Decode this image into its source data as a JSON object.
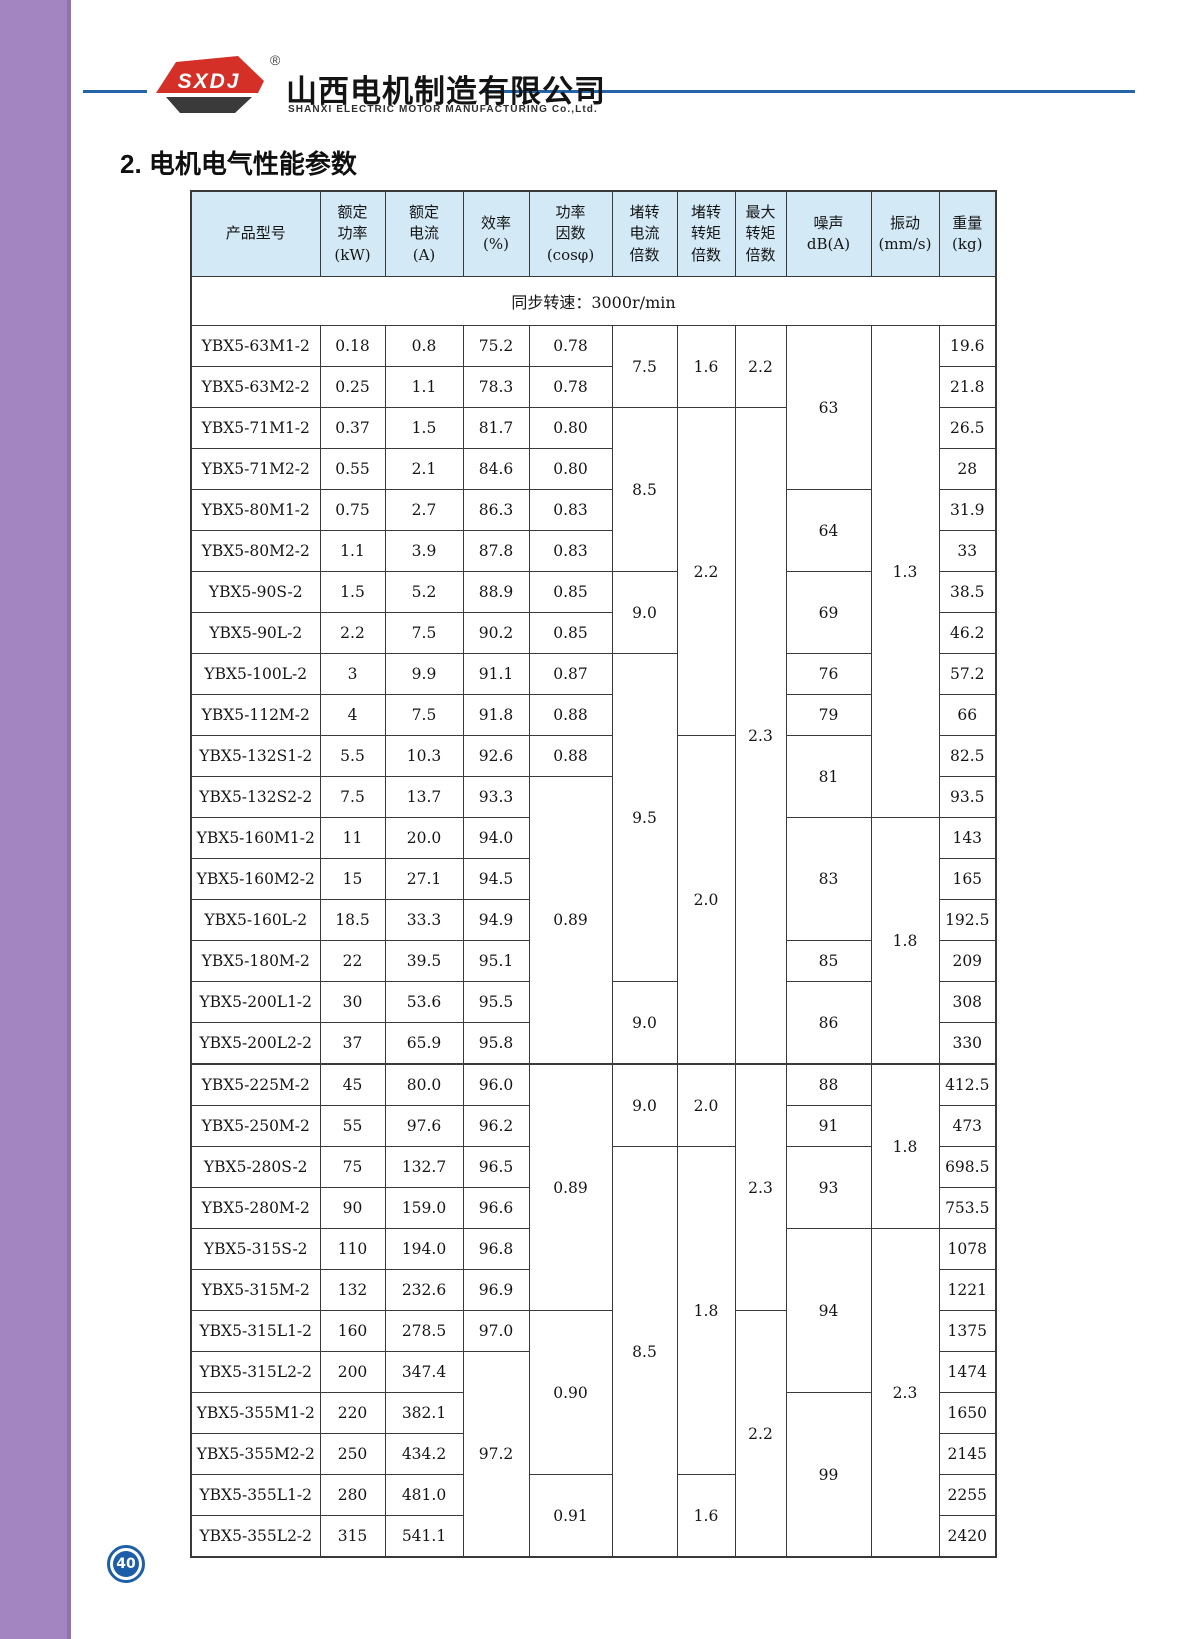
{
  "page": {
    "number": "40",
    "sidebar_color": "#a285c1",
    "sidebar_edge_color": "#9174af",
    "accent_blue": "#2465a8",
    "badge_blue": "#1c5fa8"
  },
  "header": {
    "brand_abbr": "SXDJ",
    "reg_mark": "®",
    "company_cn": "山西电机制造有限公司",
    "company_en": "SHANXI ELECTRIC MOTOR MANUFACTURING Co.,Ltd.",
    "logo_red": "#d43027",
    "logo_dark": "#3a3a3a"
  },
  "section": {
    "title": "2. 电机电气性能参数"
  },
  "table": {
    "header_bg": "#d3eaf6",
    "subheader": "同步转速：3000r/min",
    "block_separator_after_row": 18,
    "columns": [
      {
        "key": "product-model",
        "lines": [
          "产品型号"
        ]
      },
      {
        "key": "rated-power",
        "lines": [
          "额定",
          "功率",
          "(kW)"
        ]
      },
      {
        "key": "rated-current",
        "lines": [
          "额定",
          "电流",
          "(A)"
        ]
      },
      {
        "key": "efficiency",
        "lines": [
          "效率",
          "(%)"
        ]
      },
      {
        "key": "power-factor",
        "lines": [
          "功率",
          "因数",
          "(cosφ)"
        ]
      },
      {
        "key": "locked-rotor-current-ratio",
        "lines": [
          "堵转",
          "电流",
          "倍数"
        ]
      },
      {
        "key": "locked-rotor-torque-ratio",
        "lines": [
          "堵转",
          "转矩",
          "倍数"
        ]
      },
      {
        "key": "max-torque-ratio",
        "lines": [
          "最大",
          "转矩",
          "倍数"
        ]
      },
      {
        "key": "noise",
        "lines": [
          "噪声",
          "dB(A)"
        ]
      },
      {
        "key": "vibration",
        "lines": [
          "振动",
          "(mm/s)"
        ]
      },
      {
        "key": "weight",
        "lines": [
          "重量",
          "(kg)"
        ]
      }
    ],
    "rows": [
      {
        "model": "YBX5-63M1-2",
        "power": "0.18",
        "current": "0.8",
        "weight": "19.6"
      },
      {
        "model": "YBX5-63M2-2",
        "power": "0.25",
        "current": "1.1",
        "weight": "21.8"
      },
      {
        "model": "YBX5-71M1-2",
        "power": "0.37",
        "current": "1.5",
        "weight": "26.5"
      },
      {
        "model": "YBX5-71M2-2",
        "power": "0.55",
        "current": "2.1",
        "weight": "28"
      },
      {
        "model": "YBX5-80M1-2",
        "power": "0.75",
        "current": "2.7",
        "weight": "31.9"
      },
      {
        "model": "YBX5-80M2-2",
        "power": "1.1",
        "current": "3.9",
        "weight": "33"
      },
      {
        "model": "YBX5-90S-2",
        "power": "1.5",
        "current": "5.2",
        "weight": "38.5"
      },
      {
        "model": "YBX5-90L-2",
        "power": "2.2",
        "current": "7.5",
        "weight": "46.2"
      },
      {
        "model": "YBX5-100L-2",
        "power": "3",
        "current": "9.9",
        "weight": "57.2"
      },
      {
        "model": "YBX5-112M-2",
        "power": "4",
        "current": "7.5",
        "weight": "66"
      },
      {
        "model": "YBX5-132S1-2",
        "power": "5.5",
        "current": "10.3",
        "weight": "82.5"
      },
      {
        "model": "YBX5-132S2-2",
        "power": "7.5",
        "current": "13.7",
        "weight": "93.5"
      },
      {
        "model": "YBX5-160M1-2",
        "power": "11",
        "current": "20.0",
        "weight": "143"
      },
      {
        "model": "YBX5-160M2-2",
        "power": "15",
        "current": "27.1",
        "weight": "165"
      },
      {
        "model": "YBX5-160L-2",
        "power": "18.5",
        "current": "33.3",
        "weight": "192.5"
      },
      {
        "model": "YBX5-180M-2",
        "power": "22",
        "current": "39.5",
        "weight": "209"
      },
      {
        "model": "YBX5-200L1-2",
        "power": "30",
        "current": "53.6",
        "weight": "308"
      },
      {
        "model": "YBX5-200L2-2",
        "power": "37",
        "current": "65.9",
        "weight": "330"
      },
      {
        "model": "YBX5-225M-2",
        "power": "45",
        "current": "80.0",
        "weight": "412.5"
      },
      {
        "model": "YBX5-250M-2",
        "power": "55",
        "current": "97.6",
        "weight": "473"
      },
      {
        "model": "YBX5-280S-2",
        "power": "75",
        "current": "132.7",
        "weight": "698.5"
      },
      {
        "model": "YBX5-280M-2",
        "power": "90",
        "current": "159.0",
        "weight": "753.5"
      },
      {
        "model": "YBX5-315S-2",
        "power": "110",
        "current": "194.0",
        "weight": "1078"
      },
      {
        "model": "YBX5-315M-2",
        "power": "132",
        "current": "232.6",
        "weight": "1221"
      },
      {
        "model": "YBX5-315L1-2",
        "power": "160",
        "current": "278.5",
        "weight": "1375"
      },
      {
        "model": "YBX5-315L2-2",
        "power": "200",
        "current": "347.4",
        "weight": "1474"
      },
      {
        "model": "YBX5-355M1-2",
        "power": "220",
        "current": "382.1",
        "weight": "1650"
      },
      {
        "model": "YBX5-355M2-2",
        "power": "250",
        "current": "434.2",
        "weight": "2145"
      },
      {
        "model": "YBX5-355L1-2",
        "power": "280",
        "current": "481.0",
        "weight": "2255"
      },
      {
        "model": "YBX5-355L2-2",
        "power": "315",
        "current": "541.1",
        "weight": "2420"
      }
    ],
    "merged": {
      "efficiency": [
        {
          "start": 1,
          "span": 1,
          "value": "75.2"
        },
        {
          "start": 2,
          "span": 1,
          "value": "78.3"
        },
        {
          "start": 3,
          "span": 1,
          "value": "81.7"
        },
        {
          "start": 4,
          "span": 1,
          "value": "84.6"
        },
        {
          "start": 5,
          "span": 1,
          "value": "86.3"
        },
        {
          "start": 6,
          "span": 1,
          "value": "87.8"
        },
        {
          "start": 7,
          "span": 1,
          "value": "88.9"
        },
        {
          "start": 8,
          "span": 1,
          "value": "90.2"
        },
        {
          "start": 9,
          "span": 1,
          "value": "91.1"
        },
        {
          "start": 10,
          "span": 1,
          "value": "91.8"
        },
        {
          "start": 11,
          "span": 1,
          "value": "92.6"
        },
        {
          "start": 12,
          "span": 1,
          "value": "93.3"
        },
        {
          "start": 13,
          "span": 1,
          "value": "94.0"
        },
        {
          "start": 14,
          "span": 1,
          "value": "94.5"
        },
        {
          "start": 15,
          "span": 1,
          "value": "94.9"
        },
        {
          "start": 16,
          "span": 1,
          "value": "95.1"
        },
        {
          "start": 17,
          "span": 1,
          "value": "95.5"
        },
        {
          "start": 18,
          "span": 1,
          "value": "95.8"
        },
        {
          "start": 19,
          "span": 1,
          "value": "96.0"
        },
        {
          "start": 20,
          "span": 1,
          "value": "96.2"
        },
        {
          "start": 21,
          "span": 1,
          "value": "96.5"
        },
        {
          "start": 22,
          "span": 1,
          "value": "96.6"
        },
        {
          "start": 23,
          "span": 1,
          "value": "96.8"
        },
        {
          "start": 24,
          "span": 1,
          "value": "96.9"
        },
        {
          "start": 25,
          "span": 1,
          "value": "97.0"
        },
        {
          "start": 26,
          "span": 5,
          "value": "97.2"
        }
      ],
      "power_factor": [
        {
          "start": 1,
          "span": 1,
          "value": "0.78"
        },
        {
          "start": 2,
          "span": 1,
          "value": "0.78"
        },
        {
          "start": 3,
          "span": 1,
          "value": "0.80"
        },
        {
          "start": 4,
          "span": 1,
          "value": "0.80"
        },
        {
          "start": 5,
          "span": 1,
          "value": "0.83"
        },
        {
          "start": 6,
          "span": 1,
          "value": "0.83"
        },
        {
          "start": 7,
          "span": 1,
          "value": "0.85"
        },
        {
          "start": 8,
          "span": 1,
          "value": "0.85"
        },
        {
          "start": 9,
          "span": 1,
          "value": "0.87"
        },
        {
          "start": 10,
          "span": 1,
          "value": "0.88"
        },
        {
          "start": 11,
          "span": 1,
          "value": "0.88"
        },
        {
          "start": 12,
          "span": 7,
          "value": "0.89"
        },
        {
          "start": 19,
          "span": 6,
          "value": "0.89"
        },
        {
          "start": 25,
          "span": 4,
          "value": "0.90"
        },
        {
          "start": 29,
          "span": 2,
          "value": "0.91"
        }
      ],
      "locked_rotor_current_ratio": [
        {
          "start": 1,
          "span": 2,
          "value": "7.5"
        },
        {
          "start": 3,
          "span": 4,
          "value": "8.5"
        },
        {
          "start": 7,
          "span": 2,
          "value": "9.0"
        },
        {
          "start": 9,
          "span": 8,
          "value": "9.5"
        },
        {
          "start": 17,
          "span": 2,
          "value": "9.0"
        },
        {
          "start": 19,
          "span": 2,
          "value": "9.0"
        },
        {
          "start": 21,
          "span": 10,
          "value": "8.5"
        }
      ],
      "locked_rotor_torque_ratio": [
        {
          "start": 1,
          "span": 2,
          "value": "1.6"
        },
        {
          "start": 3,
          "span": 8,
          "value": "2.2"
        },
        {
          "start": 11,
          "span": 8,
          "value": "2.0"
        },
        {
          "start": 19,
          "span": 2,
          "value": "2.0"
        },
        {
          "start": 21,
          "span": 8,
          "value": "1.8"
        },
        {
          "start": 29,
          "span": 2,
          "value": "1.6"
        }
      ],
      "max_torque_ratio": [
        {
          "start": 1,
          "span": 2,
          "value": "2.2"
        },
        {
          "start": 3,
          "span": 16,
          "value": "2.3"
        },
        {
          "start": 19,
          "span": 6,
          "value": "2.3"
        },
        {
          "start": 25,
          "span": 6,
          "value": "2.2"
        }
      ],
      "noise_db": [
        {
          "start": 1,
          "span": 4,
          "value": "63"
        },
        {
          "start": 5,
          "span": 2,
          "value": "64"
        },
        {
          "start": 7,
          "span": 2,
          "value": "69"
        },
        {
          "start": 9,
          "span": 1,
          "value": "76"
        },
        {
          "start": 10,
          "span": 1,
          "value": "79"
        },
        {
          "start": 11,
          "span": 2,
          "value": "81"
        },
        {
          "start": 13,
          "span": 3,
          "value": "83"
        },
        {
          "start": 16,
          "span": 1,
          "value": "85"
        },
        {
          "start": 17,
          "span": 2,
          "value": "86"
        },
        {
          "start": 19,
          "span": 1,
          "value": "88"
        },
        {
          "start": 20,
          "span": 1,
          "value": "91"
        },
        {
          "start": 21,
          "span": 2,
          "value": "93"
        },
        {
          "start": 23,
          "span": 4,
          "value": "94"
        },
        {
          "start": 27,
          "span": 4,
          "value": "99"
        }
      ],
      "vibration": [
        {
          "start": 1,
          "span": 12,
          "value": "1.3"
        },
        {
          "start": 13,
          "span": 6,
          "value": "1.8"
        },
        {
          "start": 19,
          "span": 4,
          "value": "1.8"
        },
        {
          "start": 23,
          "span": 8,
          "value": "2.3"
        }
      ]
    }
  }
}
